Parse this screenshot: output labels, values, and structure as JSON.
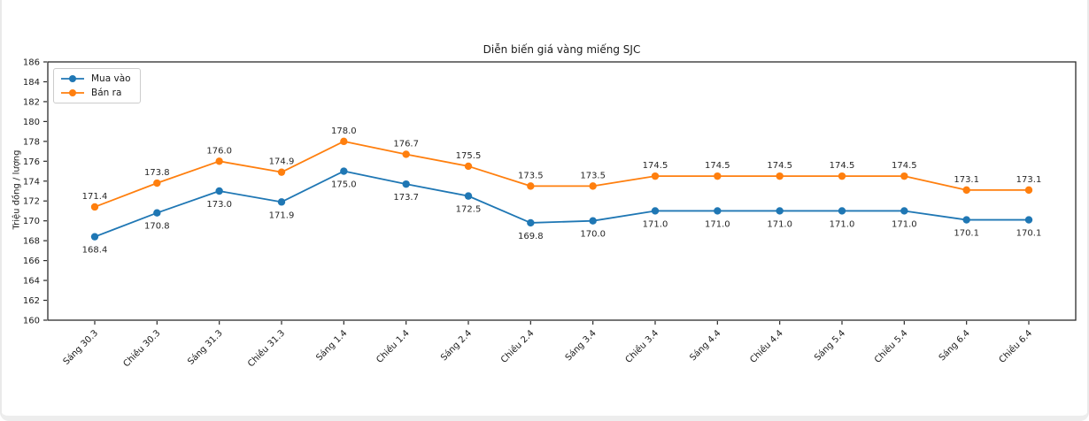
{
  "chart_data": {
    "type": "line",
    "title": "Diễn biến giá vàng miếng SJC",
    "xlabel": "",
    "ylabel": "Triệu đồng / lượng",
    "ylim": [
      160,
      186
    ],
    "ytick_step": 2,
    "grid": false,
    "legend_position": "upper-left",
    "categories": [
      "Sáng 30.3",
      "Chiều 30.3",
      "Sáng 31.3",
      "Chiều 31.3",
      "Sáng 1.4",
      "Chiều 1.4",
      "Sáng 2.4",
      "Chiều 2.4",
      "Sáng 3.4",
      "Chiều 3.4",
      "Sáng 4.4",
      "Chiều 4.4",
      "Sáng 5.4",
      "Chiều 5.4",
      "Sáng 6.4",
      "Chiều 6.4"
    ],
    "series": [
      {
        "name": "Mua vào",
        "color": "#1f77b4",
        "label_position": "below",
        "values": [
          168.4,
          170.8,
          173.0,
          171.9,
          175.0,
          173.7,
          172.5,
          169.8,
          170.0,
          171.0,
          171.0,
          171.0,
          171.0,
          171.0,
          170.1,
          170.1
        ]
      },
      {
        "name": "Bán ra",
        "color": "#ff7f0e",
        "label_position": "above",
        "values": [
          171.4,
          173.8,
          176.0,
          174.9,
          178.0,
          176.7,
          175.5,
          173.5,
          173.5,
          174.5,
          174.5,
          174.5,
          174.5,
          174.5,
          173.1,
          173.1
        ]
      }
    ],
    "label_text_color": "#262626",
    "axis_color": "#2b2b2b"
  }
}
